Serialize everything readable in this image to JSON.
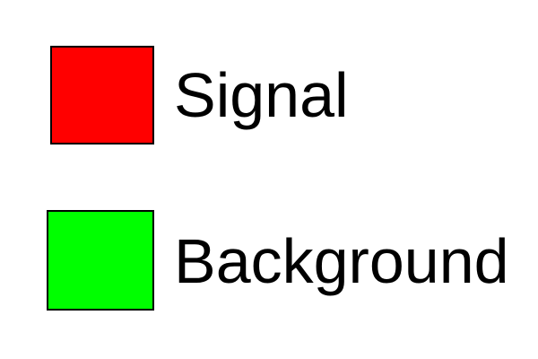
{
  "chart_data": {
    "type": "legend",
    "title": "",
    "legend": [
      {
        "name": "Signal",
        "color": "#ff0000"
      },
      {
        "name": "Background",
        "color": "#00ff00"
      }
    ]
  }
}
